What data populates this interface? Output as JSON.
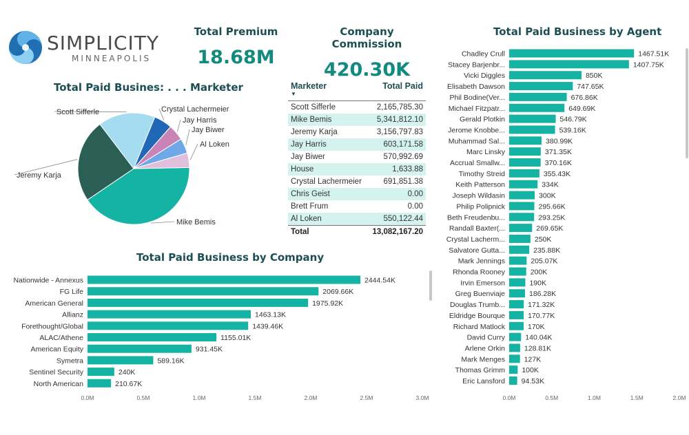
{
  "logo": {
    "main": "SIMPLICITY",
    "sub": "MINNEAPOLIS"
  },
  "cards": [
    {
      "title": "Total Premium",
      "value": "18.68M"
    },
    {
      "title": "Company Commission",
      "value": "420.30K"
    }
  ],
  "colors": {
    "teal": "#15b3a3",
    "accent_text": "#138a7e",
    "title_text": "#1b4f53",
    "row_alt": "#d4f3ee"
  },
  "table": {
    "headers": [
      "Marketer",
      "Total Paid"
    ],
    "rows": [
      {
        "name": "Scott Sifferle",
        "value": "2,165,785.30"
      },
      {
        "name": "Mike Bemis",
        "value": "5,341,812.10"
      },
      {
        "name": "Jeremy Karja",
        "value": "3,156,797.83"
      },
      {
        "name": "Jay Harris",
        "value": "603,171.58"
      },
      {
        "name": "Jay Biwer",
        "value": "570,992.69"
      },
      {
        "name": "House",
        "value": "1,633.88"
      },
      {
        "name": "Crystal Lachermeier",
        "value": "691,851.38"
      },
      {
        "name": "Chris Geist",
        "value": "0.00"
      },
      {
        "name": "Brett Frum",
        "value": "0.00"
      },
      {
        "name": "Al Loken",
        "value": "550,122.44"
      }
    ],
    "total_label": "Total",
    "total_value": "13,082,167.20"
  },
  "chart_data": [
    {
      "type": "pie",
      "title": "Total Paid Busines: . . . Marketer",
      "labels": [
        "Mike Bemis",
        "Jeremy Karja",
        "Scott Sifferle",
        "Crystal Lachermeier",
        "Jay Harris",
        "Jay Biwer",
        "Al Loken"
      ],
      "values": [
        5341812.1,
        3156797.83,
        2165785.3,
        691851.38,
        603171.58,
        570992.69,
        550122.44
      ],
      "colors": [
        "#15b3a3",
        "#2b5e55",
        "#a6dcef",
        "#2068b5",
        "#c983b6",
        "#6ea8e6",
        "#dfbfdc"
      ]
    },
    {
      "type": "bar",
      "orientation": "horizontal",
      "title": "Total Paid Business by Company",
      "categories": [
        "Nationwide - Annexus",
        "FG Life",
        "American General",
        "Allianz",
        "Forethought/Global",
        "ALAC/Athene",
        "American Equity",
        "Symetra",
        "Sentinel Security",
        "North American"
      ],
      "values": [
        2444.54,
        2069.66,
        1975.92,
        1463.13,
        1439.46,
        1155.01,
        931.45,
        589.16,
        240,
        210.67
      ],
      "data_labels": [
        "2444.54K",
        "2069.66K",
        "1975.92K",
        "1463.13K",
        "1439.46K",
        "1155.01K",
        "931.45K",
        "589.16K",
        "240K",
        "210.67K"
      ],
      "unit": "K",
      "xlim": [
        0,
        3000
      ],
      "ticks": [
        "0.0M",
        "0.5M",
        "1.0M",
        "1.5M",
        "2.0M",
        "2.5M",
        "3.0M"
      ]
    },
    {
      "type": "bar",
      "orientation": "horizontal",
      "title": "Total Paid Business by Agent",
      "categories": [
        "Chadley Crull",
        "Stacey Barjenbr...",
        "Vicki Diggles",
        "Elisabeth Dawson",
        "Phil Bodine(Ver...",
        "Michael Fitzpatr...",
        "Gerald Plotkin",
        "Jerome Knobbe...",
        "Muhammad Sal...",
        "Marc Linsky",
        "Accrual Smallw...",
        "Timothy Streid",
        "Keith Patterson",
        "Joseph Wildasin",
        "Philip Polipnick",
        "Beth Freudenbu...",
        "Randall Baxter(...",
        "Crystal Lacherm...",
        "Salvatore Gutta...",
        "Mark Jennings",
        "Rhonda Rooney",
        "Irvin Emerson",
        "Greg Buenviaje",
        "Douglas Trumb...",
        "Eldridge Bourque",
        "Richard Matlock",
        "David Curry",
        "Arlene Orkin",
        "Mark Menges",
        "Thomas Grimm",
        "Eric Lansford"
      ],
      "values": [
        1467.51,
        1407.75,
        850,
        747.65,
        676.86,
        649.69,
        546.79,
        539.16,
        380.99,
        371.35,
        370.16,
        355.43,
        334,
        300,
        295.66,
        293.25,
        269.65,
        250,
        235.88,
        205.07,
        200,
        190,
        186.28,
        171.32,
        170.77,
        170,
        140.04,
        128.81,
        127,
        100,
        94.53
      ],
      "data_labels": [
        "1467.51K",
        "1407.75K",
        "850K",
        "747.65K",
        "676.86K",
        "649.69K",
        "546.79K",
        "539.16K",
        "380.99K",
        "371.35K",
        "370.16K",
        "355.43K",
        "334K",
        "300K",
        "295.66K",
        "293.25K",
        "269.65K",
        "250K",
        "235.88K",
        "205.07K",
        "200K",
        "190K",
        "186.28K",
        "171.32K",
        "170.77K",
        "170K",
        "140.04K",
        "128.81K",
        "127K",
        "100K",
        "94.53K"
      ],
      "unit": "K",
      "xlim": [
        0,
        2000
      ],
      "ticks": [
        "0.0M",
        "0.5M",
        "1.0M",
        "1.5M",
        "2.0M"
      ]
    }
  ]
}
